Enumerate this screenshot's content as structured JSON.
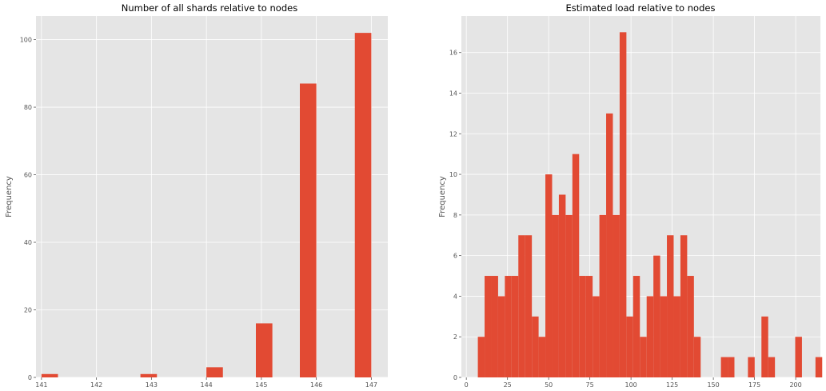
{
  "chart_data": [
    {
      "type": "bar",
      "title": "Number of all shards relative to nodes",
      "xlabel": "",
      "ylabel": "Frequency",
      "xlim": [
        140.9,
        147.3
      ],
      "ylim": [
        0,
        107
      ],
      "xticks": [
        141,
        142,
        143,
        144,
        145,
        146,
        147
      ],
      "yticks": [
        0,
        20,
        40,
        60,
        80,
        100
      ],
      "grid": true,
      "bar_color": "#E24A33",
      "bins": [
        {
          "x0": 141.0,
          "x1": 141.3,
          "value": 1
        },
        {
          "x0": 142.8,
          "x1": 143.1,
          "value": 1
        },
        {
          "x0": 144.0,
          "x1": 144.3,
          "value": 3
        },
        {
          "x0": 144.9,
          "x1": 145.2,
          "value": 16
        },
        {
          "x0": 145.7,
          "x1": 146.0,
          "value": 87
        },
        {
          "x0": 146.7,
          "x1": 147.0,
          "value": 102
        }
      ]
    },
    {
      "type": "bar",
      "title": "Estimated load relative to nodes",
      "xlabel": "",
      "ylabel": "Frequency",
      "xlim": [
        -3,
        215
      ],
      "ylim": [
        0,
        17.8
      ],
      "xticks": [
        0,
        25,
        50,
        75,
        100,
        125,
        150,
        175,
        200
      ],
      "yticks": [
        0,
        2,
        4,
        6,
        8,
        10,
        12,
        14,
        16
      ],
      "grid": true,
      "bar_color": "#E24A33",
      "bin_start": 7,
      "bin_width": 4.1,
      "values": [
        2,
        5,
        5,
        4,
        5,
        5,
        7,
        7,
        3,
        2,
        10,
        8,
        9,
        8,
        11,
        5,
        5,
        4,
        8,
        13,
        8,
        17,
        3,
        5,
        2,
        4,
        6,
        4,
        7,
        4,
        7,
        5,
        2,
        0,
        0,
        0,
        1,
        1,
        0,
        0,
        1,
        0,
        3,
        1,
        0,
        0,
        0,
        2,
        0,
        0,
        1
      ]
    }
  ]
}
